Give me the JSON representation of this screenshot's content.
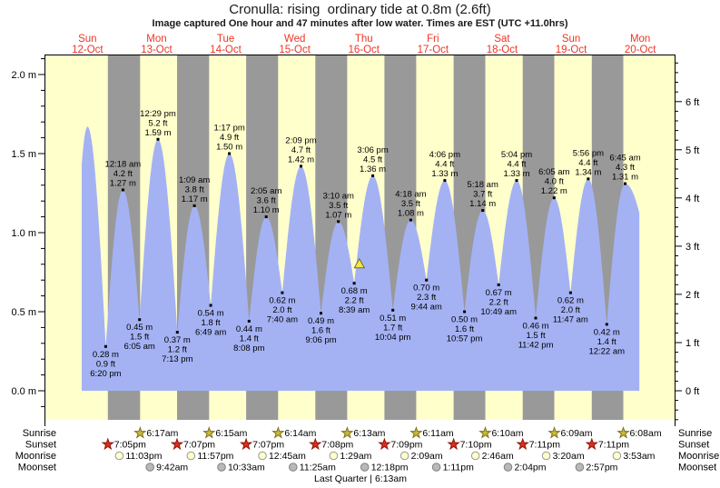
{
  "header": {
    "title": "Cronulla: rising  ordinary tide at 0.8m (2.6ft)",
    "subtitle": "Image captured One hour and 47 minutes after low water. Times are EST (UTC +11.0hrs)"
  },
  "colors": {
    "day_band": "#ffffcc",
    "night_band": "#999999",
    "tide_fill": "#a4b2f4",
    "day_label": "#ee3524",
    "axis": "#000000",
    "marker_fill": "#f5e642",
    "marker_stroke": "#6b6b2a",
    "sunrise_star": "#c9b93c",
    "sunrise_star_stroke": "#7d701a",
    "sunset_star": "#dd2e1f",
    "sunset_star_stroke": "#8f1408",
    "moonrise_circle": "#ffffcc",
    "moonrise_circle_stroke": "#999999",
    "moonset_circle": "#b9b9b9",
    "moonset_circle_stroke": "#808080"
  },
  "chart_data": {
    "type": "area",
    "title": "Cronulla: rising  ordinary tide at 0.8m (2.6ft)",
    "x_axis": {
      "days": [
        {
          "name": "Sun",
          "date": "12-Oct"
        },
        {
          "name": "Mon",
          "date": "13-Oct"
        },
        {
          "name": "Tue",
          "date": "14-Oct"
        },
        {
          "name": "Wed",
          "date": "15-Oct"
        },
        {
          "name": "Thu",
          "date": "16-Oct"
        },
        {
          "name": "Fri",
          "date": "17-Oct"
        },
        {
          "name": "Sat",
          "date": "18-Oct"
        },
        {
          "name": "Sun",
          "date": "19-Oct"
        },
        {
          "name": "Mon",
          "date": "20-Oct"
        }
      ]
    },
    "y_axis_left": {
      "unit": "m",
      "range": [
        -0.18,
        2.13
      ],
      "ticks": [
        {
          "v": 2.0,
          "label": "2.0 m"
        },
        {
          "v": 1.5,
          "label": "1.5 m"
        },
        {
          "v": 1.0,
          "label": "1.0 m"
        },
        {
          "v": 0.5,
          "label": "0.5 m"
        },
        {
          "v": 0.0,
          "label": "0.0 m"
        }
      ]
    },
    "y_axis_right": {
      "unit": "ft",
      "ticks": [
        {
          "v": 6,
          "label": "6 ft"
        },
        {
          "v": 5,
          "label": "5 ft"
        },
        {
          "v": 4,
          "label": "4 ft"
        },
        {
          "v": 3,
          "label": "3 ft"
        },
        {
          "v": 2,
          "label": "2 ft"
        },
        {
          "v": 1,
          "label": "1 ft"
        },
        {
          "v": 0,
          "label": "0 ft"
        }
      ]
    },
    "night_bands": [
      [
        0.79514,
        1.26181
      ],
      [
        1.79653,
        2.26042
      ],
      [
        2.79653,
        3.25972
      ],
      [
        3.79722,
        4.25903
      ],
      [
        4.79792,
        5.25764
      ],
      [
        5.79861,
        6.25694
      ],
      [
        6.79931,
        7.25625
      ],
      [
        7.79931,
        8.25556
      ]
    ],
    "data_window": [
      0.4166,
      8.487
    ],
    "current_marker": {
      "t": 4.435,
      "h": 0.8
    },
    "tide_extremes": [
      {
        "kind": "low",
        "t": 0.28,
        "h": 0.3,
        "labeled": false
      },
      {
        "kind": "high",
        "t": 0.5,
        "h": 1.67,
        "labeled": false
      },
      {
        "kind": "low",
        "t": 0.76389,
        "h": 0.28,
        "date": "12-Oct",
        "m": "0.28 m",
        "ft": "0.9 ft",
        "time": "6:20 pm",
        "labeled": true
      },
      {
        "kind": "high",
        "t": 1.0125,
        "h": 1.27,
        "date": "13-Oct",
        "m": "1.27 m",
        "ft": "4.2 ft",
        "time": "12:18 am",
        "labeled": true
      },
      {
        "kind": "low",
        "t": 1.25347,
        "h": 0.45,
        "date": "13-Oct",
        "m": "0.45 m",
        "ft": "1.5 ft",
        "time": "6:05 am",
        "labeled": true
      },
      {
        "kind": "high",
        "t": 1.52014,
        "h": 1.59,
        "date": "13-Oct",
        "m": "1.59 m",
        "ft": "5.2 ft",
        "time": "12:29 pm",
        "labeled": true
      },
      {
        "kind": "low",
        "t": 1.80069,
        "h": 0.37,
        "date": "13-Oct",
        "m": "0.37 m",
        "ft": "1.2 ft",
        "time": "7:13 pm",
        "labeled": true
      },
      {
        "kind": "high",
        "t": 2.04792,
        "h": 1.17,
        "date": "14-Oct",
        "m": "1.17 m",
        "ft": "3.8 ft",
        "time": "1:09 am",
        "labeled": true
      },
      {
        "kind": "low",
        "t": 2.28403,
        "h": 0.54,
        "date": "14-Oct",
        "m": "0.54 m",
        "ft": "1.8 ft",
        "time": "6:49 am",
        "labeled": true
      },
      {
        "kind": "high",
        "t": 2.55347,
        "h": 1.5,
        "date": "14-Oct",
        "m": "1.50 m",
        "ft": "4.9 ft",
        "time": "1:17 pm",
        "labeled": true
      },
      {
        "kind": "low",
        "t": 2.83889,
        "h": 0.44,
        "date": "14-Oct",
        "m": "0.44 m",
        "ft": "1.4 ft",
        "time": "8:08 pm",
        "labeled": true
      },
      {
        "kind": "high",
        "t": 3.08681,
        "h": 1.1,
        "date": "15-Oct",
        "m": "1.10 m",
        "ft": "3.6 ft",
        "time": "2:05 am",
        "labeled": true
      },
      {
        "kind": "low",
        "t": 3.31944,
        "h": 0.62,
        "date": "15-Oct",
        "m": "0.62 m",
        "ft": "2.0 ft",
        "time": "7:40 am",
        "labeled": true
      },
      {
        "kind": "high",
        "t": 3.58958,
        "h": 1.42,
        "date": "15-Oct",
        "m": "1.42 m",
        "ft": "4.7 ft",
        "time": "2:09 pm",
        "labeled": true
      },
      {
        "kind": "low",
        "t": 3.87917,
        "h": 0.49,
        "date": "15-Oct",
        "m": "0.49 m",
        "ft": "1.6 ft",
        "time": "9:06 pm",
        "labeled": true
      },
      {
        "kind": "high",
        "t": 4.13194,
        "h": 1.07,
        "date": "16-Oct",
        "m": "1.07 m",
        "ft": "3.5 ft",
        "time": "3:10 am",
        "labeled": true
      },
      {
        "kind": "low",
        "t": 4.36042,
        "h": 0.68,
        "date": "16-Oct",
        "m": "0.68 m",
        "ft": "2.2 ft",
        "time": "8:39 am",
        "labeled": true
      },
      {
        "kind": "high",
        "t": 4.62917,
        "h": 1.36,
        "date": "16-Oct",
        "m": "1.36 m",
        "ft": "4.5 ft",
        "time": "3:06 pm",
        "labeled": true
      },
      {
        "kind": "low",
        "t": 4.91944,
        "h": 0.51,
        "date": "16-Oct",
        "m": "0.51 m",
        "ft": "1.7 ft",
        "time": "10:04 pm",
        "labeled": true
      },
      {
        "kind": "high",
        "t": 5.17917,
        "h": 1.08,
        "date": "17-Oct",
        "m": "1.08 m",
        "ft": "3.5 ft",
        "time": "4:18 am",
        "labeled": true
      },
      {
        "kind": "low",
        "t": 5.40556,
        "h": 0.7,
        "date": "17-Oct",
        "m": "0.70 m",
        "ft": "2.3 ft",
        "time": "9:44 am",
        "labeled": true
      },
      {
        "kind": "high",
        "t": 5.67083,
        "h": 1.33,
        "date": "17-Oct",
        "m": "1.33 m",
        "ft": "4.4 ft",
        "time": "4:06 pm",
        "labeled": true
      },
      {
        "kind": "low",
        "t": 5.95625,
        "h": 0.5,
        "date": "17-Oct",
        "m": "0.50 m",
        "ft": "1.6 ft",
        "time": "10:57 pm",
        "labeled": true
      },
      {
        "kind": "high",
        "t": 6.22083,
        "h": 1.14,
        "date": "18-Oct",
        "m": "1.14 m",
        "ft": "3.7 ft",
        "time": "5:18 am",
        "labeled": true
      },
      {
        "kind": "low",
        "t": 6.45069,
        "h": 0.67,
        "date": "18-Oct",
        "m": "0.67 m",
        "ft": "2.2 ft",
        "time": "10:49 am",
        "labeled": true
      },
      {
        "kind": "high",
        "t": 6.71111,
        "h": 1.33,
        "date": "18-Oct",
        "m": "1.33 m",
        "ft": "4.4 ft",
        "time": "5:04 pm",
        "labeled": true
      },
      {
        "kind": "low",
        "t": 6.9875,
        "h": 0.46,
        "date": "18-Oct",
        "m": "0.46 m",
        "ft": "1.5 ft",
        "time": "11:42 pm",
        "labeled": true
      },
      {
        "kind": "high",
        "t": 7.25347,
        "h": 1.22,
        "date": "19-Oct",
        "m": "1.22 m",
        "ft": "4.0 ft",
        "time": "6:05 am",
        "labeled": true
      },
      {
        "kind": "low",
        "t": 7.49097,
        "h": 0.62,
        "date": "19-Oct",
        "m": "0.62 m",
        "ft": "2.0 ft",
        "time": "11:47 am",
        "labeled": true
      },
      {
        "kind": "high",
        "t": 7.74722,
        "h": 1.34,
        "date": "19-Oct",
        "m": "1.34 m",
        "ft": "4.4 ft",
        "time": "5:56 pm",
        "labeled": true
      },
      {
        "kind": "low",
        "t": 8.01528,
        "h": 0.42,
        "date": "20-Oct",
        "m": "0.42 m",
        "ft": "1.4 ft",
        "time": "12:22 am",
        "labeled": true
      },
      {
        "kind": "high",
        "t": 8.28125,
        "h": 1.31,
        "date": "20-Oct",
        "m": "1.31 m",
        "ft": "4.3 ft",
        "time": "6:45 am",
        "labeled": true
      },
      {
        "kind": "low",
        "t": 8.75,
        "h": 0.5,
        "labeled": false
      }
    ]
  },
  "astro": {
    "rows": [
      {
        "key": "sunrise",
        "label": "Sunrise",
        "icon": "star",
        "events": [
          {
            "time": "6:17am",
            "date": "13-Oct",
            "t": 1.26181
          },
          {
            "time": "6:15am",
            "date": "14-Oct",
            "t": 2.26042
          },
          {
            "time": "6:14am",
            "date": "15-Oct",
            "t": 3.25972
          },
          {
            "time": "6:13am",
            "date": "16-Oct",
            "t": 4.25903
          },
          {
            "time": "6:11am",
            "date": "17-Oct",
            "t": 5.25764
          },
          {
            "time": "6:10am",
            "date": "18-Oct",
            "t": 6.25694
          },
          {
            "time": "6:09am",
            "date": "19-Oct",
            "t": 7.25625
          },
          {
            "time": "6:08am",
            "date": "20-Oct",
            "t": 8.25556
          }
        ]
      },
      {
        "key": "sunset",
        "label": "Sunset",
        "icon": "star",
        "events": [
          {
            "time": "7:05pm",
            "date": "12-Oct",
            "t": 0.79514
          },
          {
            "time": "7:07pm",
            "date": "13-Oct",
            "t": 1.79653
          },
          {
            "time": "7:07pm",
            "date": "14-Oct",
            "t": 2.79653
          },
          {
            "time": "7:08pm",
            "date": "15-Oct",
            "t": 3.79722
          },
          {
            "time": "7:09pm",
            "date": "16-Oct",
            "t": 4.79792
          },
          {
            "time": "7:10pm",
            "date": "17-Oct",
            "t": 5.79861
          },
          {
            "time": "7:11pm",
            "date": "18-Oct",
            "t": 6.79931
          },
          {
            "time": "7:11pm",
            "date": "19-Oct",
            "t": 7.79931
          }
        ]
      },
      {
        "key": "moonrise",
        "label": "Moonrise",
        "icon": "circle",
        "events": [
          {
            "time": "11:03pm",
            "date": "12-Oct",
            "t": 0.96042
          },
          {
            "time": "11:57pm",
            "date": "13-Oct",
            "t": 1.99792
          },
          {
            "time": "12:45am",
            "date": "15-Oct",
            "t": 3.03125
          },
          {
            "time": "1:29am",
            "date": "16-Oct",
            "t": 4.06181
          },
          {
            "time": "2:09am",
            "date": "17-Oct",
            "t": 5.08958
          },
          {
            "time": "2:46am",
            "date": "18-Oct",
            "t": 6.11528
          },
          {
            "time": "3:20am",
            "date": "19-Oct",
            "t": 7.13889
          },
          {
            "time": "3:53am",
            "date": "20-Oct",
            "t": 8.16181
          }
        ]
      },
      {
        "key": "moonset",
        "label": "Moonset",
        "icon": "circle",
        "events": [
          {
            "time": "9:42am",
            "date": "13-Oct",
            "t": 1.40417
          },
          {
            "time": "10:33am",
            "date": "14-Oct",
            "t": 2.43958
          },
          {
            "time": "11:25am",
            "date": "15-Oct",
            "t": 3.47569
          },
          {
            "time": "12:18pm",
            "date": "16-Oct",
            "t": 4.5125
          },
          {
            "time": "1:11pm",
            "date": "17-Oct",
            "t": 5.54931
          },
          {
            "time": "2:04pm",
            "date": "18-Oct",
            "t": 6.58611
          },
          {
            "time": "2:57pm",
            "date": "19-Oct",
            "t": 7.62292
          }
        ]
      }
    ],
    "footnote": "Last Quarter | 6:13am"
  }
}
